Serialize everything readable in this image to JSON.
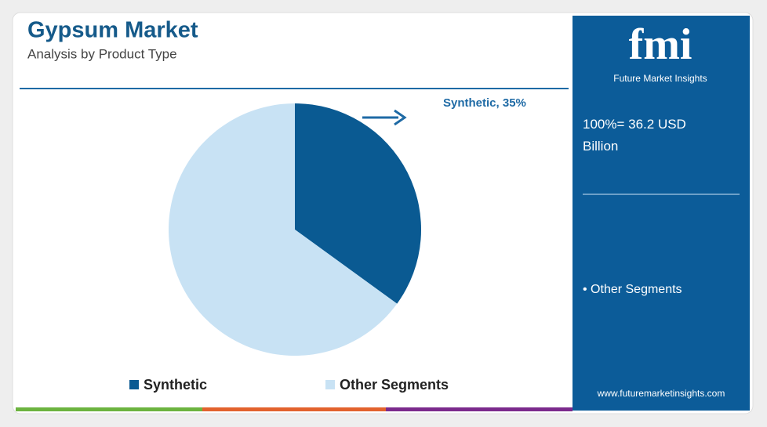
{
  "chart_data": {
    "type": "pie",
    "title": "Gypsum Market",
    "subtitle": "Analysis by Product Type",
    "categories": [
      "Synthetic",
      "Other Segments"
    ],
    "values": [
      35,
      65
    ],
    "value_labels": [
      "Synthetic, 35%",
      null
    ],
    "colors": [
      "#0a5a92",
      "#c8e2f4"
    ]
  },
  "side_panel": {
    "logo": "fmi",
    "logo_caption": "Future Market Insights",
    "total": "100%= 36.2 USD Billion",
    "bullet": "• Other Segments",
    "website": "www.futuremarketinsights.com"
  }
}
